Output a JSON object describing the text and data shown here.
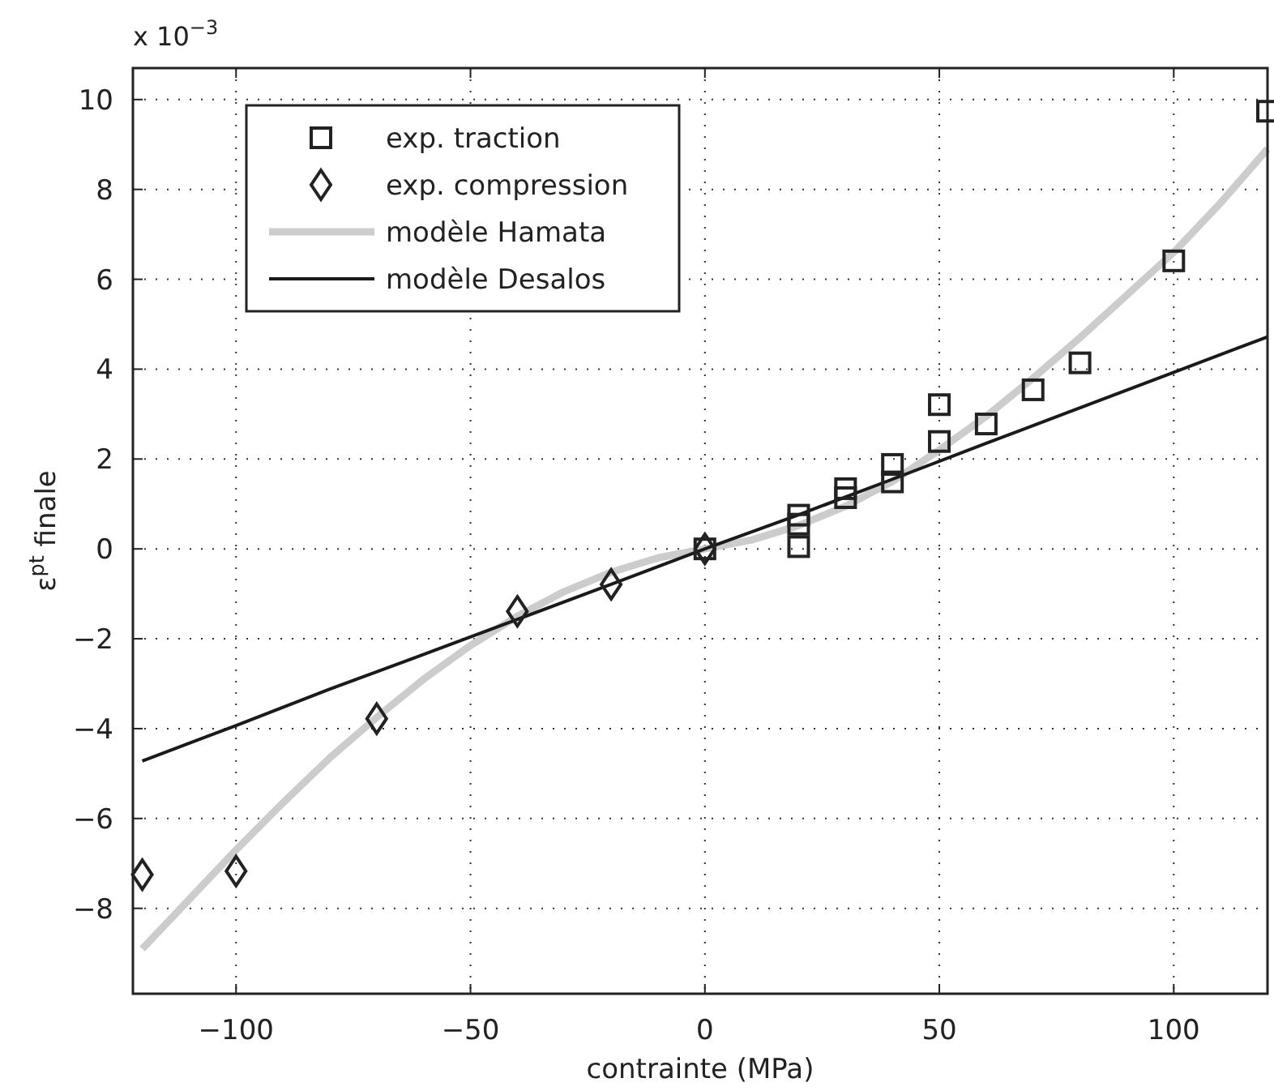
{
  "chart_data": {
    "type": "scatter",
    "xlabel": "contrainte (MPa)",
    "ylabel": "ε$^{pt}$ finale",
    "annotations": [
      "x 10$^{−3}$"
    ],
    "xlim": [
      -122,
      120
    ],
    "ylim": [
      -9.9,
      10.7
    ],
    "xticks": [
      {
        "value": -100,
        "label": "−100"
      },
      {
        "value": -50,
        "label": "−50"
      },
      0,
      50,
      100
    ],
    "yticks": [
      {
        "value": -8,
        "label": "−8"
      },
      {
        "value": -6,
        "label": "−6"
      },
      {
        "value": -4,
        "label": "−4"
      },
      {
        "value": -2,
        "label": "−2"
      },
      0,
      2,
      4,
      6,
      8,
      10
    ],
    "grid": true,
    "legend": "top left",
    "series": [
      {
        "name": "exp. traction",
        "type": "scatter",
        "marker": "square",
        "color": "#222222",
        "x": [
          0,
          20,
          20,
          20,
          30,
          30,
          40,
          40,
          50,
          50,
          60,
          70,
          80,
          100,
          120
        ],
        "values": [
          0,
          0.75,
          0.55,
          0.05,
          1.34,
          1.14,
          1.88,
          1.49,
          3.21,
          2.39,
          2.78,
          3.54,
          4.14,
          6.41,
          9.74
        ]
      },
      {
        "name": "exp. compression",
        "type": "scatter",
        "marker": "diamond",
        "color": "#222222",
        "x": [
          -120,
          -100,
          -70,
          -40,
          -20,
          0
        ],
        "values": [
          -7.25,
          -7.17,
          -3.78,
          -1.39,
          -0.79,
          0
        ]
      },
      {
        "name": "modèle Hamata",
        "type": "line",
        "marker": "none",
        "color": "#cccccc",
        "x": [
          -120,
          -110,
          -100,
          -90,
          -80,
          -70,
          -60,
          -50,
          -40,
          -30,
          -20,
          -10,
          0,
          10,
          20,
          30,
          40,
          50,
          60,
          70,
          80,
          90,
          100,
          110,
          120
        ],
        "values": [
          -8.9,
          -7.8,
          -6.7,
          -5.65,
          -4.65,
          -3.75,
          -2.9,
          -2.15,
          -1.5,
          -0.95,
          -0.52,
          -0.2,
          0,
          0.2,
          0.52,
          0.95,
          1.5,
          2.2,
          2.95,
          3.8,
          4.7,
          5.65,
          6.6,
          7.7,
          8.9
        ]
      },
      {
        "name": "modèle Desalos",
        "type": "line",
        "marker": "none",
        "color": "#1a1a1a",
        "x": [
          -120,
          -100,
          -80,
          -60,
          -40,
          -20,
          0,
          20,
          40,
          60,
          80,
          100,
          120
        ],
        "values": [
          -4.72,
          -3.93,
          -3.12,
          -2.35,
          -1.57,
          -0.79,
          0,
          0.76,
          1.55,
          2.35,
          3.14,
          3.93,
          4.72
        ]
      }
    ]
  }
}
